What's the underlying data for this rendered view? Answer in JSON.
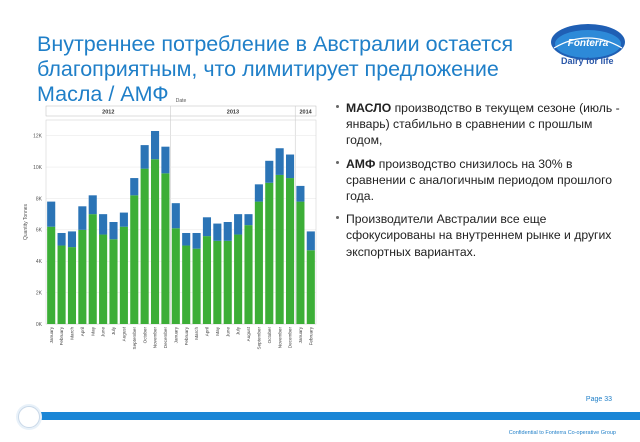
{
  "slide": {
    "title": "Внутреннее потребление в Австралии остается благоприятным, что лимитирует предложение Масла / АМФ",
    "page": "Page 33",
    "confidential": "Confidential to Fonterra Co-operative Group"
  },
  "logo": {
    "name": "Fonterra",
    "tagline": "Dairy for life"
  },
  "bullets": [
    {
      "bold": "МАСЛО",
      "text": " производство в текущем сезоне (июль - январь) стабильно в сравнении с прошлым годом,"
    },
    {
      "bold": "АМФ",
      "text": " производство снизилось на 30% в сравнении с аналогичным периодом прошлого года."
    },
    {
      "bold": "",
      "text": "Производители Австралии все еще сфокусированы на внутреннем рынке и других экспортных вариантах."
    }
  ],
  "colors": {
    "butter": "#3cae37",
    "amf": "#2b74b6",
    "title": "#1f7fc8"
  },
  "chart_data": {
    "type": "bar",
    "stacked": true,
    "title": "Date",
    "ylabel": "Quantity Tonnes",
    "ylim": [
      0,
      13000
    ],
    "yticks": [
      0,
      2000,
      4000,
      6000,
      8000,
      10000,
      12000
    ],
    "ytick_labels": [
      "0K",
      "2K",
      "4K",
      "6K",
      "8K",
      "10K",
      "12K"
    ],
    "groups": [
      {
        "label": "2012",
        "count": 12
      },
      {
        "label": "2013",
        "count": 12
      },
      {
        "label": "2014",
        "count": 2
      }
    ],
    "categories": [
      "January",
      "February",
      "March",
      "April",
      "May",
      "June",
      "July",
      "August",
      "September",
      "October",
      "November",
      "December",
      "January",
      "February",
      "March",
      "April",
      "May",
      "June",
      "July",
      "August",
      "September",
      "October",
      "November",
      "December",
      "January",
      "February"
    ],
    "series": [
      {
        "values": [
          6200,
          5000,
          4900,
          6000,
          7000,
          5700,
          5400,
          6200,
          8200,
          9900,
          10500,
          9600,
          6100,
          5000,
          4800,
          5600,
          5300,
          5300,
          5700,
          6300,
          7800,
          9000,
          9500,
          9300,
          7800,
          4700
        ]
      },
      {
        "values": [
          1600,
          800,
          1000,
          1500,
          1200,
          1300,
          1100,
          900,
          1100,
          1500,
          1800,
          1700,
          1600,
          800,
          1000,
          1200,
          1100,
          1200,
          1300,
          700,
          1100,
          1400,
          1700,
          1500,
          1000,
          1200
        ]
      }
    ]
  }
}
